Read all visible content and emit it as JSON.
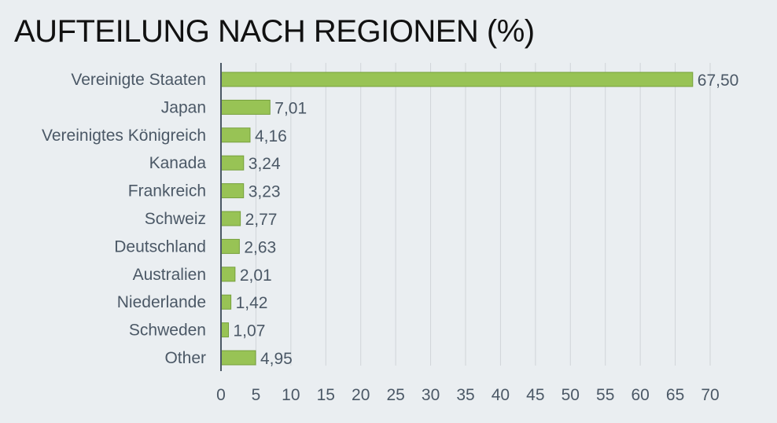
{
  "chart_data": {
    "type": "bar",
    "orientation": "horizontal",
    "title": "AUFTEILUNG NACH REGIONEN (%)",
    "categories": [
      "Vereinigte Staaten",
      "Japan",
      "Vereinigtes Königreich",
      "Kanada",
      "Frankreich",
      "Schweiz",
      "Deutschland",
      "Australien",
      "Niederlande",
      "Schweden",
      "Other"
    ],
    "values": [
      67.5,
      7.01,
      4.16,
      3.24,
      3.23,
      2.77,
      2.63,
      2.01,
      1.42,
      1.07,
      4.95
    ],
    "data_labels": [
      "67,50",
      "7,01",
      "4,16",
      "3,24",
      "3,23",
      "2,77",
      "2,63",
      "2,01",
      "1,42",
      "1,07",
      "4,95"
    ],
    "xlim": [
      0,
      70
    ],
    "xticks": [
      "0",
      "5",
      "10",
      "15",
      "20",
      "25",
      "30",
      "35",
      "40",
      "45",
      "50",
      "55",
      "60",
      "65",
      "70"
    ],
    "grid": true,
    "legend": "none",
    "colors": {
      "bar": "#98c355",
      "bar_border": "#76a03c",
      "text": "#4b5866",
      "axis": "#4b5866",
      "grid": "#d0d4d8"
    }
  }
}
